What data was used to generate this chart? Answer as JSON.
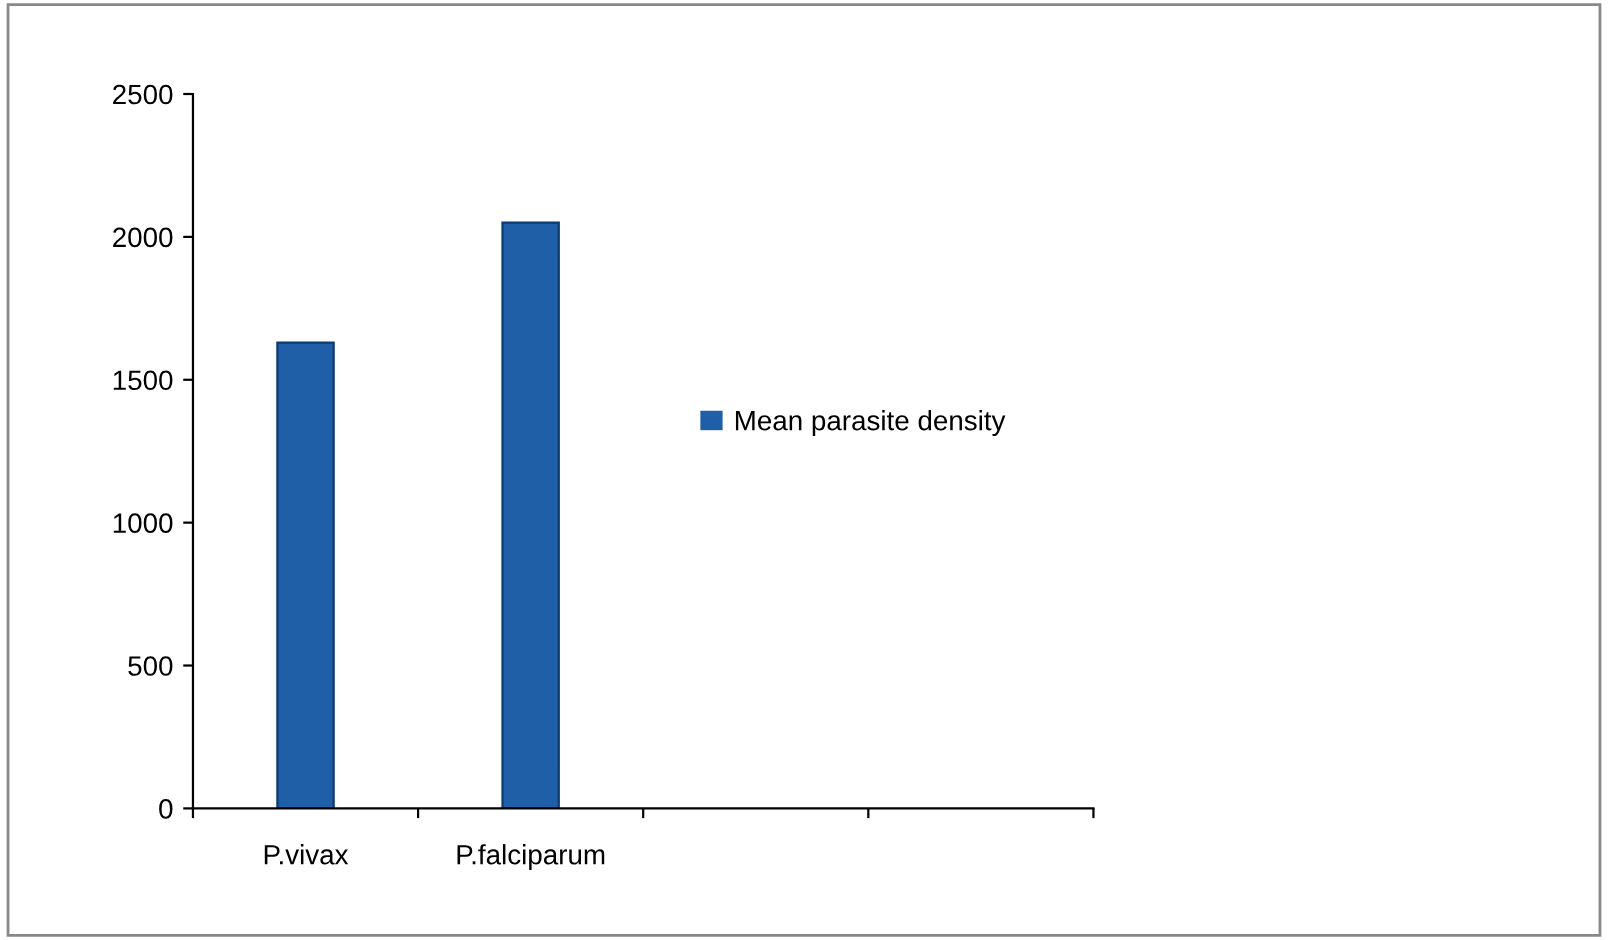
{
  "chart_data": {
    "type": "bar",
    "categories": [
      "P.vivax",
      "P.falciparum",
      null,
      null
    ],
    "series": [
      {
        "name": "Mean parasite density",
        "color": "#1f5fa8",
        "values": [
          1630,
          2050,
          null,
          null
        ]
      }
    ],
    "ylim": [
      0,
      2500
    ],
    "yticks": [
      0,
      500,
      1000,
      1500,
      2000,
      2500
    ],
    "grid": false,
    "legend": "right"
  }
}
